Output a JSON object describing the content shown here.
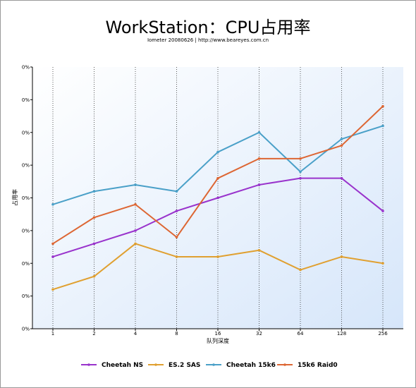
{
  "chart_data": {
    "type": "line",
    "title": "WorkStation：CPU占用率",
    "subtitle": "Iometer 20080626 | http://www.beareyes.com.cn",
    "xlabel": "队列深度",
    "ylabel": "占用率",
    "categories": [
      "1",
      "2",
      "4",
      "8",
      "16",
      "32",
      "64",
      "128",
      "256"
    ],
    "y_tick_labels": [
      "0%",
      "0%",
      "0%",
      "0%",
      "0%",
      "0%",
      "0%",
      "0%",
      "0%"
    ],
    "ylim": [
      0,
      8
    ],
    "grid": "vertical dotted",
    "legend_position": "bottom",
    "series": [
      {
        "name": "Cheetah NS",
        "color": "#9933cc",
        "values": [
          2.2,
          2.6,
          3.0,
          3.6,
          4.0,
          4.4,
          4.6,
          4.6,
          3.6
        ]
      },
      {
        "name": "ES.2 SAS",
        "color": "#e0a030",
        "values": [
          1.2,
          1.6,
          2.6,
          2.2,
          2.2,
          2.4,
          1.8,
          2.2,
          2.0
        ]
      },
      {
        "name": "Cheetah 15k6",
        "color": "#4aa0c8",
        "values": [
          3.8,
          4.2,
          4.4,
          4.2,
          5.4,
          6.0,
          4.8,
          5.8,
          6.2
        ]
      },
      {
        "name": "15k6 Raid0",
        "color": "#dd6633",
        "values": [
          2.6,
          3.4,
          3.8,
          2.8,
          4.6,
          5.2,
          5.2,
          5.6,
          6.8
        ]
      }
    ]
  }
}
